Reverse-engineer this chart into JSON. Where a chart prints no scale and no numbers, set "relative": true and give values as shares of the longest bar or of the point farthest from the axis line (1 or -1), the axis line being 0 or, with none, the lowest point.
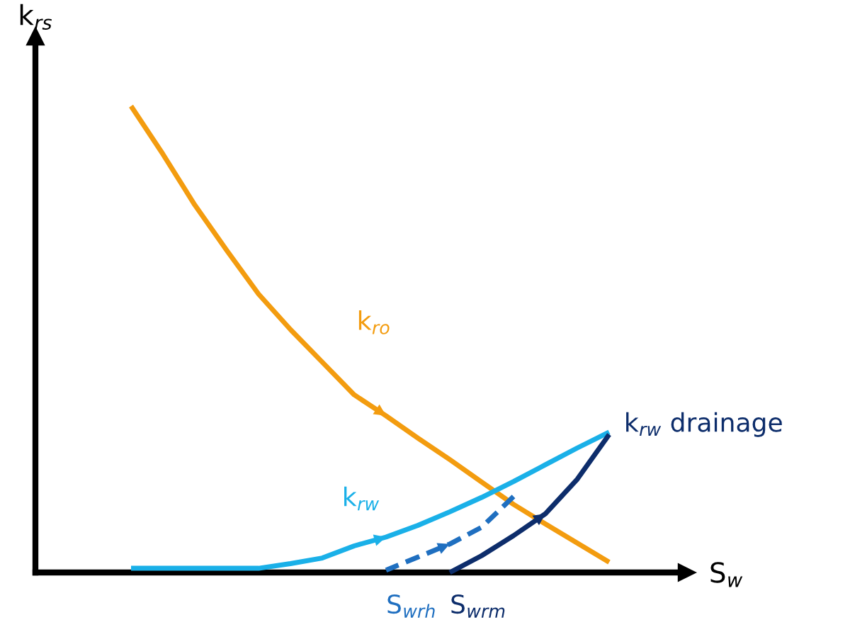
{
  "chart_data": {
    "type": "line",
    "relative": true,
    "xlabel": "S$_{w}$",
    "ylabel": "k$_{rs}$",
    "marker": "none",
    "categories": [
      null,
      null,
      null,
      null,
      null,
      null,
      null,
      null,
      null,
      null,
      null,
      null,
      null,
      null,
      null,
      null,
      null,
      null,
      null,
      null,
      null
    ],
    "series": [
      {
        "name": "k$_{ro}$",
        "color": "#f39c0f",
        "values": [
          null,
          null,
          null,
          1.0,
          0.897,
          0.788,
          0.691,
          0.597,
          0.521,
          0.451,
          0.381,
          0.336,
          0.288,
          0.242,
          0.194,
          0.146,
          0.104,
          0.063,
          0.022,
          null,
          null
        ]
      },
      {
        "name": "k$_{rw}$",
        "color": "#1ab0e8",
        "values": [
          null,
          null,
          null,
          0.009,
          0.009,
          0.009,
          0.009,
          0.009,
          0.019,
          0.031,
          0.057,
          0.076,
          0.101,
          0.13,
          0.161,
          0.195,
          0.231,
          0.267,
          0.301,
          null,
          null
        ]
      },
      {
        "name": "k$_{rw}$ drainage",
        "color": "#0d2d6b",
        "values": [
          null,
          null,
          null,
          null,
          null,
          null,
          null,
          null,
          null,
          null,
          null,
          null,
          null,
          0.0,
          0.036,
          0.079,
          0.126,
          0.2,
          0.296,
          null,
          null
        ]
      },
      {
        "color": "#1f6fc0",
        "line_style": "dashed",
        "values": [
          null,
          null,
          null,
          null,
          null,
          null,
          null,
          null,
          null,
          null,
          null,
          0.005,
          0.033,
          0.061,
          0.097,
          0.163,
          null,
          null,
          null,
          null,
          null
        ]
      }
    ],
    "annotations": [
      "S$_{wrh}$",
      "S$_{wrm}$"
    ]
  }
}
